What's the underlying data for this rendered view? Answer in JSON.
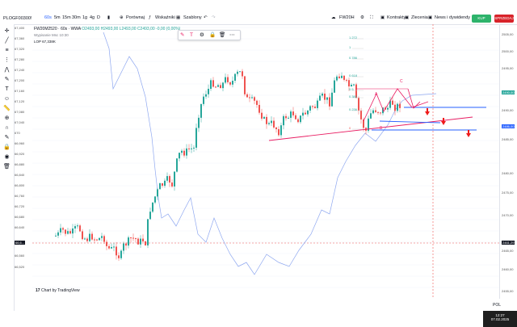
{
  "toolbar": {
    "symbol": "PLOGF00300!",
    "intervals": [
      "60s",
      "5m",
      "15m",
      "30m",
      "1g",
      "4g",
      "D"
    ],
    "active_interval": "60s",
    "compare_label": "Porównaj",
    "indicators_label": "Wskaźniki",
    "templates_label": "Szablony",
    "account": "FW20H",
    "contracts_label": "Kontrakty",
    "orders_label": "Zlecenia",
    "news_label": "News i dywidendy",
    "buy_label": "KUP",
    "sell_label": "SPRZEDAJ"
  },
  "legend": {
    "title": "FW20M2520 · 60s · WWA",
    "ohlc": "O2493,00 H2493,00 L2493,00 C2493,00 -0,00 (0,00%)",
    "second": "Wypisanie Msc 10:30",
    "third": "LOP 67,338K"
  },
  "left_scale": [
    "67,400",
    "67,360",
    "67,320",
    "67,280",
    "67,240",
    "67,200",
    "67,160",
    "67,120",
    "67,080",
    "67,040",
    "670",
    "66,960",
    "66,920",
    "66,880",
    "66,840",
    "66,800",
    "66,760",
    "66,720",
    "66,680",
    "66,640",
    "66,600",
    "66,560",
    "66,520"
  ],
  "right_scale": [
    "2505,00",
    "2500,00",
    "2495,00",
    "2490,00",
    "2485,00",
    "2480,00",
    "2475,00",
    "2470,00",
    "2465,00",
    "2460,00",
    "2455,00"
  ],
  "price_tags": {
    "right_top": "2490,00",
    "right_blue": "2486,00",
    "right_cur": "2461,29",
    "left_cur": "66,6..."
  },
  "fib_labels": [
    "1.272",
    "1",
    "0.786",
    "0.618",
    "0.5",
    "0.382",
    "0.236",
    "0"
  ],
  "pattern_labels": {
    "a": "A",
    "b": "B",
    "c": "C"
  },
  "chart_by": "Chart by TradingView",
  "colors": {
    "up": "#26a69a",
    "down": "#ef5350",
    "pink": "#e91e63",
    "blue": "#2962ff"
  },
  "clock": {
    "time": "12:27",
    "date": "07.02.2025"
  },
  "tray": {
    "lang": "POL",
    "battery": "bat"
  }
}
